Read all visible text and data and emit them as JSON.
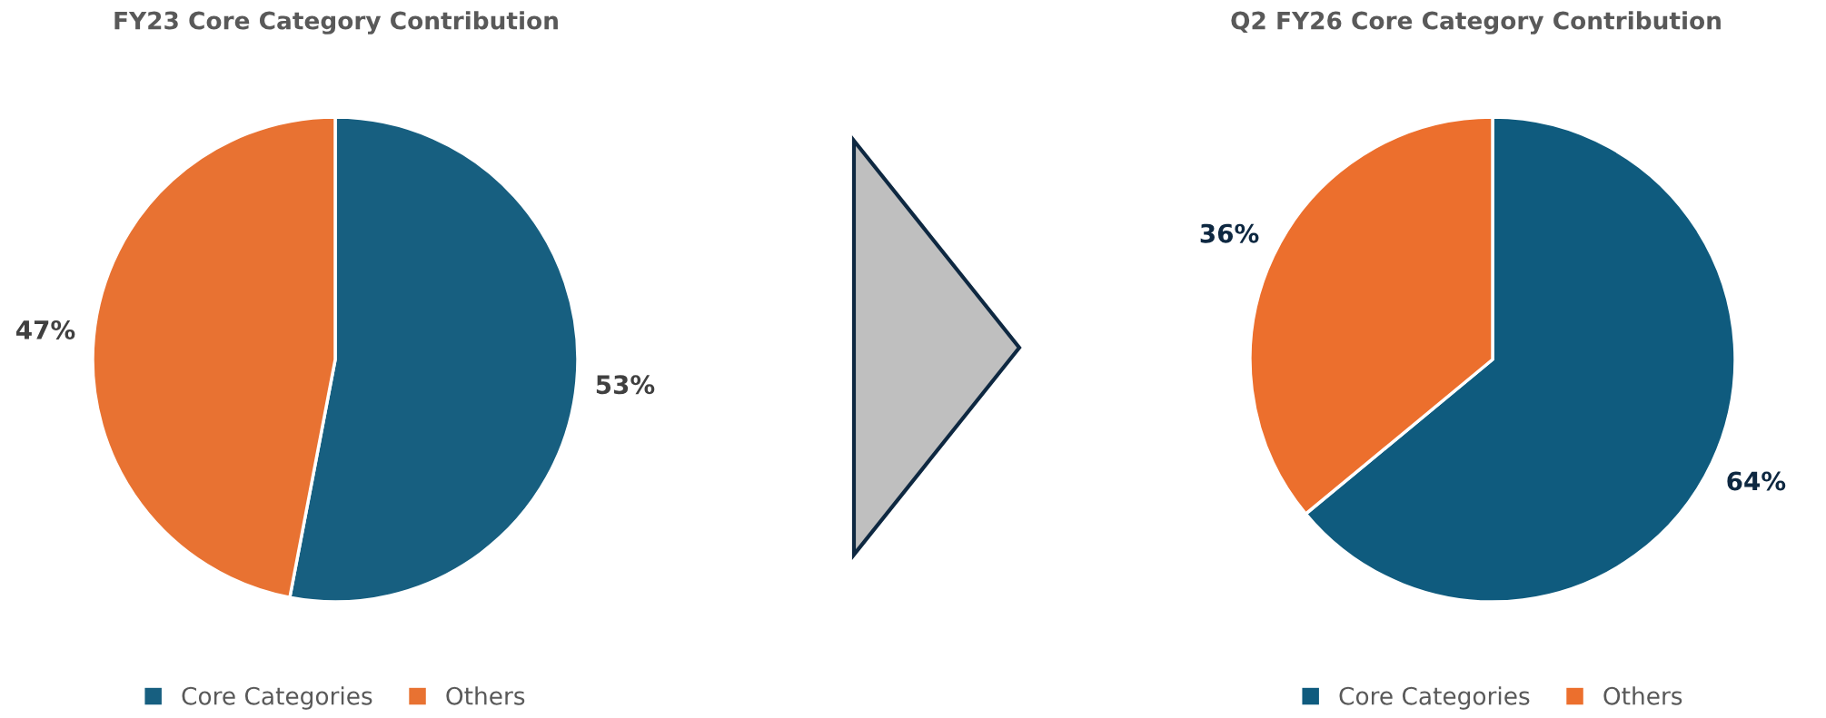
{
  "chart_data": [
    {
      "type": "pie",
      "title": "FY23 Core Category Contribution",
      "categories": [
        "Core Categories",
        "Others"
      ],
      "values": [
        53,
        47
      ],
      "colors": [
        "#175f80",
        "#e87232"
      ],
      "value_labels": [
        "53%",
        "47%"
      ],
      "legend": "bottom"
    },
    {
      "type": "pie",
      "title": "Q2 FY26 Core Category Contribution",
      "categories": [
        "Core Categories",
        "Others"
      ],
      "values": [
        64,
        36
      ],
      "colors": [
        "#0f5b7e",
        "#ec6f2d"
      ],
      "value_labels": [
        "64%",
        "36%"
      ],
      "legend": "bottom"
    }
  ]
}
